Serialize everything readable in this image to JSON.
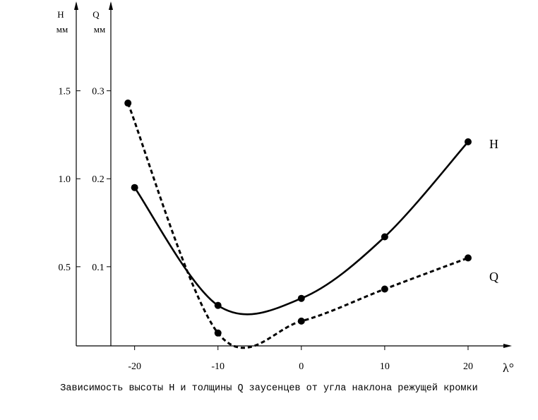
{
  "caption": "Зависимость высоты H и толщины Q заусенцев от угла наклона режущей кромки",
  "chart_data": {
    "type": "line",
    "x_label": "λ°",
    "x_ticks": [
      -20,
      -10,
      0,
      10,
      20
    ],
    "x_tick_labels": [
      "-20",
      "-10",
      "0",
      "10",
      "20"
    ],
    "xlim": [
      -27,
      25
    ],
    "axes": {
      "H": {
        "title": "H",
        "unit": "мм",
        "ticks": [
          0.5,
          1.0,
          1.5
        ],
        "tick_labels": [
          "0.5",
          "1.0",
          "1.5"
        ],
        "ylim": [
          0.05,
          2.0
        ]
      },
      "Q": {
        "title": "Q",
        "unit": "мм",
        "ticks": [
          0.1,
          0.2,
          0.3
        ],
        "tick_labels": [
          "0.1",
          "0.2",
          "0.3"
        ],
        "ylim": [
          0.01,
          0.4
        ]
      }
    },
    "series": [
      {
        "name": "H",
        "axis": "H",
        "style": "solid",
        "x": [
          -20,
          -10,
          0,
          10,
          20
        ],
        "y": [
          0.95,
          0.28,
          0.32,
          0.67,
          1.21
        ]
      },
      {
        "name": "Q",
        "axis": "Q",
        "style": "dashed",
        "x": [
          -20.8,
          -10,
          0,
          10,
          20
        ],
        "y": [
          0.286,
          0.0246,
          0.0382,
          0.0746,
          0.11
        ]
      }
    ],
    "grid": false,
    "legend": "labels at line ends"
  }
}
